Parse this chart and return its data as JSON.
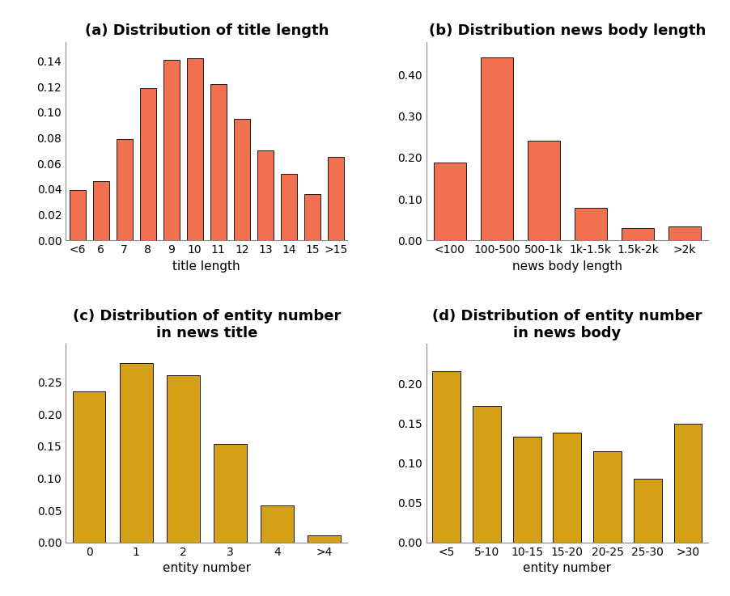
{
  "plot_a": {
    "title": "(a) Distribution of title length",
    "xlabel": "title length",
    "categories": [
      "<6",
      "6",
      "7",
      "8",
      "9",
      "10",
      "11",
      "12",
      "13",
      "14",
      "15",
      ">15"
    ],
    "values": [
      0.039,
      0.046,
      0.079,
      0.119,
      0.141,
      0.142,
      0.122,
      0.095,
      0.07,
      0.052,
      0.036,
      0.065
    ],
    "color": "#F07050",
    "ylim": [
      0,
      0.155
    ],
    "yticks": [
      0.0,
      0.02,
      0.04,
      0.06,
      0.08,
      0.1,
      0.12,
      0.14
    ]
  },
  "plot_b": {
    "title": "(b) Distribution news body length",
    "xlabel": "news body length",
    "categories": [
      "<100",
      "100-500",
      "500-1k",
      "1k-1.5k",
      "1.5k-2k",
      ">2k"
    ],
    "values": [
      0.188,
      0.443,
      0.24,
      0.079,
      0.03,
      0.034
    ],
    "color": "#F07050",
    "ylim": [
      0,
      0.48
    ],
    "yticks": [
      0.0,
      0.1,
      0.2,
      0.3,
      0.4
    ]
  },
  "plot_c": {
    "title": "(c) Distribution of entity number\nin news title",
    "xlabel": "entity number",
    "categories": [
      "0",
      "1",
      "2",
      "3",
      "4",
      ">4"
    ],
    "values": [
      0.235,
      0.28,
      0.261,
      0.153,
      0.057,
      0.011
    ],
    "color": "#D4A017",
    "ylim": [
      0,
      0.31
    ],
    "yticks": [
      0.0,
      0.05,
      0.1,
      0.15,
      0.2,
      0.25
    ]
  },
  "plot_d": {
    "title": "(d) Distribution of entity number\nin news body",
    "xlabel": "entity number",
    "categories": [
      "<5",
      "5-10",
      "10-15",
      "15-20",
      "20-25",
      "25-30",
      ">30"
    ],
    "values": [
      0.215,
      0.172,
      0.133,
      0.138,
      0.115,
      0.08,
      0.149
    ],
    "color": "#D4A017",
    "ylim": [
      0,
      0.25
    ],
    "yticks": [
      0.0,
      0.05,
      0.1,
      0.15,
      0.2
    ]
  },
  "title_fontsize": 13,
  "label_fontsize": 11,
  "tick_fontsize": 10,
  "bar_edgecolor": "#1a1a1a",
  "bar_linewidth": 0.7,
  "background_color": "#ffffff"
}
